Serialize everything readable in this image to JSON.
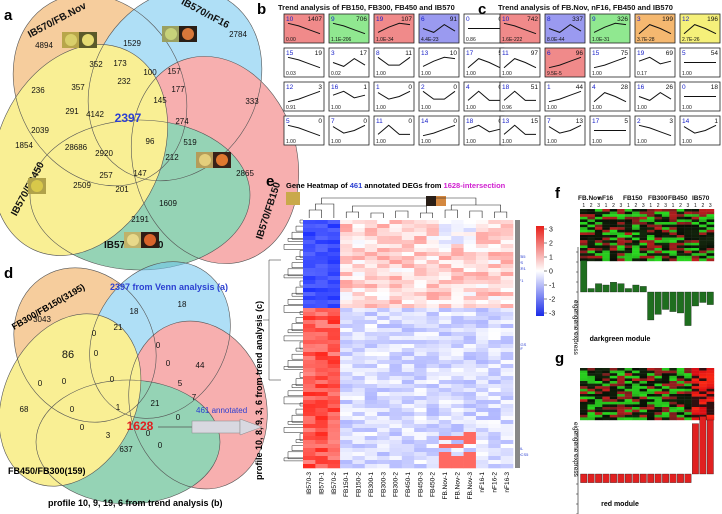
{
  "panel_letters": {
    "a": "a",
    "b": "b",
    "c": "c",
    "d": "d",
    "e": "e",
    "f": "f",
    "g": "g"
  },
  "venn_a": {
    "sets": [
      "IB570/FB.Nov",
      "IB570/nF16",
      "IB570/FB150",
      "IB570/FB300",
      "IB570/FB450"
    ],
    "colors": [
      "#f0a64e",
      "#6fc6f0",
      "#f26f6f",
      "#40b07a",
      "#f5e33d"
    ],
    "counts": [
      "4894",
      "1529",
      "2784",
      "352",
      "173",
      "100",
      "157",
      "236",
      "357",
      "232",
      "177",
      "145",
      "291",
      "4142",
      "333",
      "2397",
      "274",
      "1854",
      "2039",
      "28686",
      "2920",
      "96",
      "519",
      "212",
      "2865",
      "2509",
      "257",
      "147",
      "201",
      "1609",
      "2191"
    ],
    "center": "2397"
  },
  "trend_b": {
    "title": "Trend analysis of FB150, FB300, FB450 and IB570",
    "cells": [
      {
        "id": "10",
        "n": "1407",
        "p": "0.00",
        "color": "#f08a8a"
      },
      {
        "id": "9",
        "n": "706",
        "p": "1.1E-206",
        "color": "#90e890"
      },
      {
        "id": "19",
        "n": "107",
        "p": "1.0E-34",
        "color": "#f08a8a"
      },
      {
        "id": "6",
        "n": "91",
        "p": "4.4E-23",
        "color": "#9a9af0"
      },
      {
        "id": "0",
        "n": "0",
        "p": "0.86",
        "color": "#ffffff"
      },
      {
        "id": "15",
        "n": "19",
        "p": "0.03",
        "color": "#ffffff"
      },
      {
        "id": "3",
        "n": "17",
        "p": "0.02",
        "color": "#ffffff"
      },
      {
        "id": "8",
        "n": "11",
        "p": "1.00",
        "color": "#ffffff"
      },
      {
        "id": "13",
        "n": "10",
        "p": "1.00",
        "color": "#ffffff"
      },
      {
        "id": "17",
        "n": "5",
        "p": "1.00",
        "color": "#ffffff"
      },
      {
        "id": "12",
        "n": "3",
        "p": "0.91",
        "color": "#ffffff"
      },
      {
        "id": "16",
        "n": "1",
        "p": "1.00",
        "color": "#ffffff"
      },
      {
        "id": "1",
        "n": "0",
        "p": "1.00",
        "color": "#ffffff"
      },
      {
        "id": "2",
        "n": "0",
        "p": "1.00",
        "color": "#ffffff"
      },
      {
        "id": "4",
        "n": "0",
        "p": "1.00",
        "color": "#ffffff"
      },
      {
        "id": "5",
        "n": "0",
        "p": "1.00",
        "color": "#ffffff"
      },
      {
        "id": "7",
        "n": "0",
        "p": "1.00",
        "color": "#ffffff"
      },
      {
        "id": "11",
        "n": "0",
        "p": "1.00",
        "color": "#ffffff"
      },
      {
        "id": "14",
        "n": "0",
        "p": "1.00",
        "color": "#ffffff"
      },
      {
        "id": "18",
        "n": "0",
        "p": "1.00",
        "color": "#ffffff"
      }
    ]
  },
  "trend_c": {
    "title": "Trend analysis of FB.Nov, nF16, FB450 and IB570",
    "cells": [
      {
        "id": "10",
        "n": "742",
        "p": "1.6E-222",
        "color": "#f08a8a"
      },
      {
        "id": "8",
        "n": "337",
        "p": "8.0E-44",
        "color": "#9a9af0"
      },
      {
        "id": "9",
        "n": "326",
        "p": "1.0E-31",
        "color": "#90e890"
      },
      {
        "id": "3",
        "n": "199",
        "p": "3.7E-28",
        "color": "#f5b870"
      },
      {
        "id": "12",
        "n": "196",
        "p": "2.7E-26",
        "color": "#f5f07a"
      },
      {
        "id": "11",
        "n": "97",
        "p": "1.00",
        "color": "#ffffff"
      },
      {
        "id": "6",
        "n": "96",
        "p": "9.5E-5",
        "color": "#f08a8a"
      },
      {
        "id": "15",
        "n": "75",
        "p": "1.00",
        "color": "#ffffff"
      },
      {
        "id": "19",
        "n": "69",
        "p": "0.17",
        "color": "#ffffff"
      },
      {
        "id": "5",
        "n": "54",
        "p": "1.00",
        "color": "#ffffff"
      },
      {
        "id": "18",
        "n": "51",
        "p": "0.96",
        "color": "#ffffff"
      },
      {
        "id": "1",
        "n": "44",
        "p": "1.00",
        "color": "#ffffff"
      },
      {
        "id": "4",
        "n": "28",
        "p": "1.00",
        "color": "#ffffff"
      },
      {
        "id": "16",
        "n": "26",
        "p": "1.00",
        "color": "#ffffff"
      },
      {
        "id": "0",
        "n": "18",
        "p": "1.00",
        "color": "#ffffff"
      },
      {
        "id": "13",
        "n": "15",
        "p": "1.00",
        "color": "#ffffff"
      },
      {
        "id": "7",
        "n": "13",
        "p": "1.00",
        "color": "#ffffff"
      },
      {
        "id": "17",
        "n": "5",
        "p": "1.00",
        "color": "#ffffff"
      },
      {
        "id": "2",
        "n": "3",
        "p": "1.00",
        "color": "#ffffff"
      },
      {
        "id": "14",
        "n": "1",
        "p": "1.00",
        "color": "#ffffff"
      }
    ]
  },
  "venn_d": {
    "labels": [
      "FB300/FB150(3195)",
      "2397 from Venn analysis (a)",
      "FB450/FB300(159)",
      "profile 10, 9, 19, 6 from trend analysis (b)",
      "profile 10, 8, 9, 3, 6 from trend analysis (c)"
    ],
    "counts": [
      "3043",
      "18",
      "21",
      "18",
      "0",
      "86",
      "0",
      "0",
      "44",
      "0",
      "0",
      "0",
      "0",
      "68",
      "0",
      "5",
      "1",
      "21",
      "7",
      "0",
      "0",
      "3",
      "637",
      "0",
      "0"
    ],
    "center": "1628",
    "annotation": "461 annotated"
  },
  "heatmap_e": {
    "title_prefix": "Gene Heatmap of ",
    "title_count": "461",
    "title_middle": " annotated DEGs from ",
    "title_source": "1628-intersection",
    "columns": [
      "IB570-3",
      "IB570-1",
      "IB570-2",
      "FB150-1",
      "FB150-2",
      "FB300-1",
      "FB300-3",
      "FB300-2",
      "FB450-1",
      "FB450-3",
      "FB450-2",
      "FB.Nov-1",
      "FB.Nov-2",
      "FB.Nov-3",
      "nF16-1",
      "nF16-2",
      "nF16-3"
    ],
    "legend_ticks": [
      "3",
      "2",
      "1",
      "0",
      "-1",
      "-2",
      "-3"
    ],
    "gene_labels": [
      "CYB5",
      "CPS",
      "CCR1",
      "YIF1",
      "DEGS",
      "ERF",
      "COL",
      "PDCS5"
    ]
  },
  "module_f": {
    "groups": [
      "FB.Nov",
      "nF16",
      "FB150",
      "FB300",
      "FB450",
      "IB570"
    ],
    "reps": [
      "1",
      "2",
      "3",
      "1",
      "2",
      "3",
      "1",
      "2",
      "3",
      "1",
      "2",
      "3",
      "1",
      "2",
      "3",
      "1",
      "2",
      "3"
    ],
    "axis_label": "eigengene express",
    "name": "darkgreen module",
    "color": "#1f6e1f",
    "eigengene": [
      0.45,
      0.05,
      0.12,
      0.1,
      0.14,
      0.12,
      0.05,
      0.1,
      0.08,
      -0.4,
      -0.32,
      -0.25,
      -0.28,
      -0.3,
      -0.48,
      -0.2,
      -0.15,
      -0.18
    ]
  },
  "module_g": {
    "axis_label": "eigengene express",
    "name": "red module",
    "color": "#e02020",
    "eigengene": [
      -0.12,
      -0.12,
      -0.12,
      -0.12,
      -0.12,
      -0.12,
      -0.12,
      -0.12,
      -0.12,
      -0.12,
      -0.12,
      -0.12,
      -0.12,
      -0.12,
      -0.12,
      0.7,
      0.8,
      0.75
    ]
  }
}
